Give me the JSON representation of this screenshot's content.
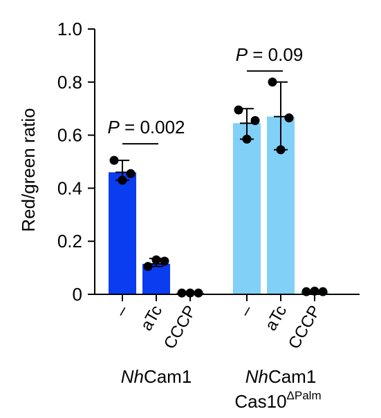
{
  "chart_data": {
    "type": "bar",
    "ylabel": "Red/green ratio",
    "ylim": [
      0,
      1.0
    ],
    "yticks": [
      0,
      0.2,
      0.4,
      0.6,
      0.8,
      1.0
    ],
    "ytick_labels": [
      "0",
      "0.2",
      "0.4",
      "0.6",
      "0.8",
      "1.0"
    ],
    "grid": false,
    "groups": [
      {
        "label_italic": "Nh",
        "label_rest": "Cam1",
        "label_line2": "",
        "label_line2_sup": "",
        "color": "#0a3cf0",
        "bars": [
          {
            "category": "–",
            "value": 0.46,
            "points": [
              0.505,
              0.43,
              0.455
            ],
            "error": [
              0.43,
              0.505
            ]
          },
          {
            "category": "aTc",
            "value": 0.115,
            "points": [
              0.105,
              0.13,
              0.125
            ],
            "error": [
              0.105,
              0.135
            ]
          },
          {
            "category": "CCCP",
            "value": 0.005,
            "points": [
              0.005,
              0.005,
              0.005
            ],
            "error": [
              0.005,
              0.005
            ]
          }
        ],
        "comparison": {
          "text_italic": "P",
          "text_rest": " = 0.002",
          "from": 0,
          "to": 1
        }
      },
      {
        "label_italic": "Nh",
        "label_rest": "Cam1",
        "label_line2": "Cas10",
        "label_line2_sup": "ΔPalm",
        "color": "#80d0f8",
        "bars": [
          {
            "category": "–",
            "value": 0.645,
            "points": [
              0.695,
              0.585,
              0.655
            ],
            "error": [
              0.585,
              0.7
            ]
          },
          {
            "category": "aTc",
            "value": 0.67,
            "points": [
              0.8,
              0.545,
              0.665
            ],
            "error": [
              0.545,
              0.8
            ]
          },
          {
            "category": "CCCP",
            "value": 0.01,
            "points": [
              0.01,
              0.012,
              0.01
            ],
            "error": [
              0.01,
              0.012
            ]
          }
        ],
        "comparison": {
          "text_italic": "P",
          "text_rest": " = 0.09",
          "from": 0,
          "to": 1
        }
      }
    ]
  }
}
